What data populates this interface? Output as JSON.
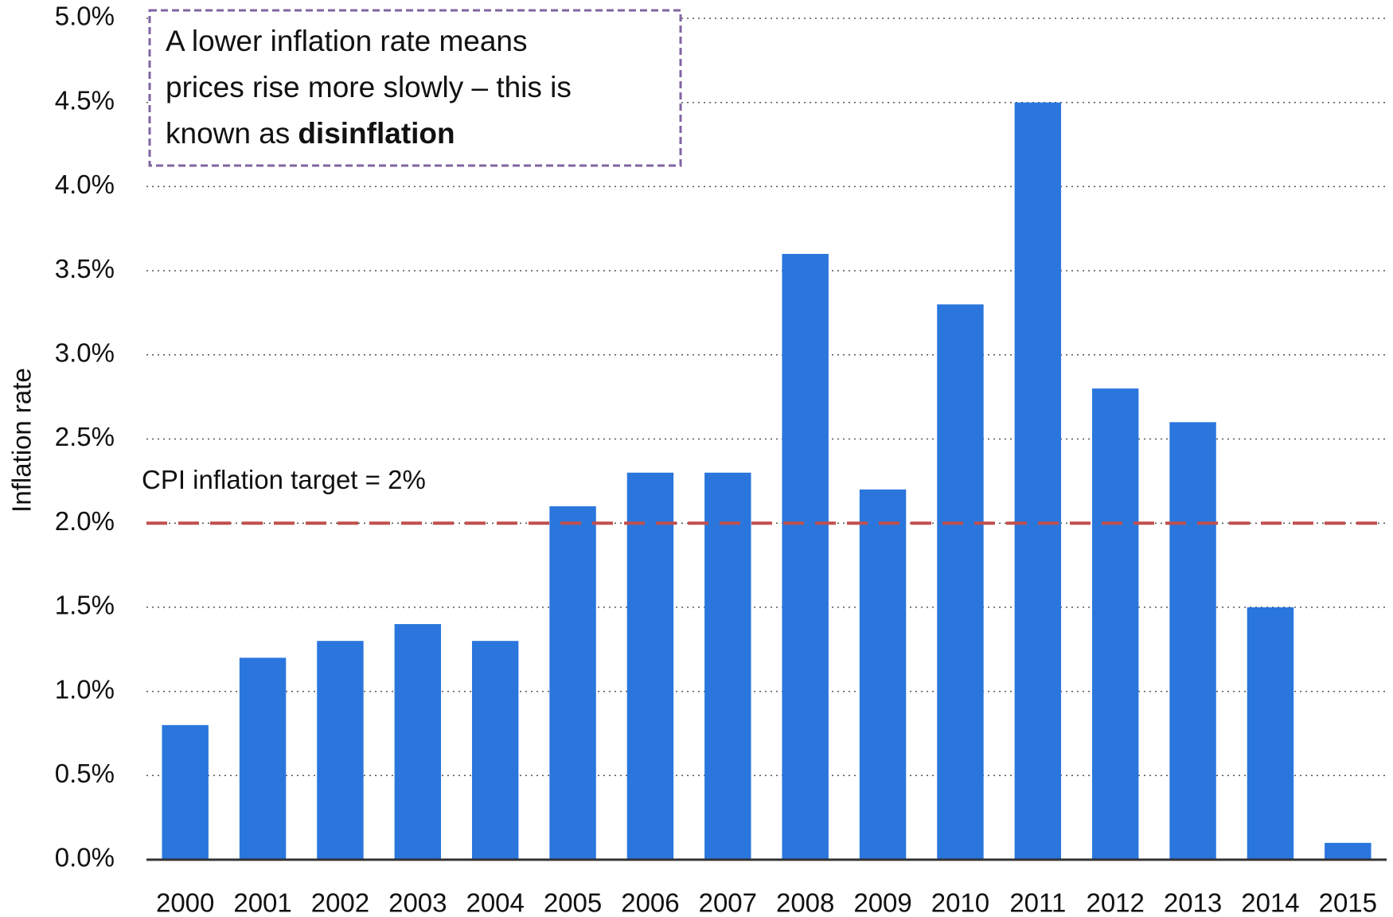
{
  "chart_data": {
    "type": "bar",
    "y_label": "Inflation rate",
    "categories": [
      "2000",
      "2001",
      "2002",
      "2003",
      "2004",
      "2005",
      "2006",
      "2007",
      "2008",
      "2009",
      "2010",
      "2011",
      "2012",
      "2013",
      "2014",
      "2015"
    ],
    "values": [
      0.8,
      1.2,
      1.3,
      1.4,
      1.3,
      2.1,
      2.3,
      2.3,
      3.6,
      2.2,
      3.3,
      4.5,
      2.8,
      2.6,
      1.5,
      0.1
    ],
    "color": "#2a76dd",
    "ylim": [
      0,
      5
    ],
    "yticks": [
      {
        "value": 0,
        "label": "0.0%"
      },
      {
        "value": 0.5,
        "label": "0.5%"
      },
      {
        "value": 1,
        "label": "1.0%"
      },
      {
        "value": 1.5,
        "label": "1.5%"
      },
      {
        "value": 2,
        "label": "2.0%"
      },
      {
        "value": 2.5,
        "label": "2.5%"
      },
      {
        "value": 3,
        "label": "3.0%"
      },
      {
        "value": 3.5,
        "label": "3.5%"
      },
      {
        "value": 4,
        "label": "4.0%"
      },
      {
        "value": 4.5,
        "label": "4.5%"
      },
      {
        "value": 5,
        "label": "5.0%"
      }
    ],
    "grid": true,
    "target": {
      "value": 2,
      "label": "CPI inflation target = 2%",
      "color": "#c0504d"
    },
    "annotation": {
      "lines": [
        "A lower inflation rate means",
        "prices rise more slowly – this is",
        "known as"
      ],
      "emphasis": "disinflation",
      "border_color": "#8064a2"
    }
  }
}
